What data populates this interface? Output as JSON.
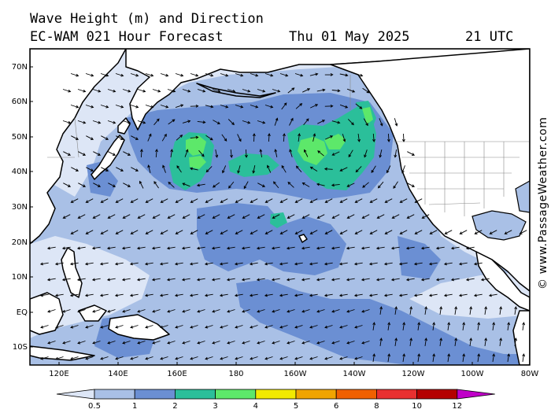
{
  "title": {
    "line1": "Wave Height (m) and Direction",
    "model": "EC-WAM 021 Hour Forecast",
    "date": "Thu 01 May 2025",
    "time": "21 UTC"
  },
  "credit": "© www.PassageWeather.com",
  "lat_labels": [
    "70N",
    "60N",
    "50N",
    "40N",
    "30N",
    "20N",
    "10N",
    "EQ",
    "10S"
  ],
  "lon_labels": [
    "120E",
    "140E",
    "160E",
    "180",
    "160W",
    "140W",
    "120W",
    "100W",
    "80W"
  ],
  "colorbar": {
    "labels": [
      "0.5",
      "1",
      "2",
      "3",
      "4",
      "5",
      "6",
      "8",
      "10",
      "12"
    ],
    "colors": [
      "#dde6f6",
      "#a9c0e6",
      "#6b8fd3",
      "#2bbf9a",
      "#5de86a",
      "#f2ea00",
      "#f0a400",
      "#f06000",
      "#e83030",
      "#b40000",
      "#c000c8"
    ]
  },
  "map_colors": {
    "land": "#ffffff",
    "coast": "#000000",
    "wave_0_5_1": "#dde6f6",
    "wave_1_2": "#a9c0e6",
    "wave_2_3": "#6b8fd3",
    "wave_3_4": "#2bbf9a",
    "wave_4_5": "#5de86a"
  }
}
